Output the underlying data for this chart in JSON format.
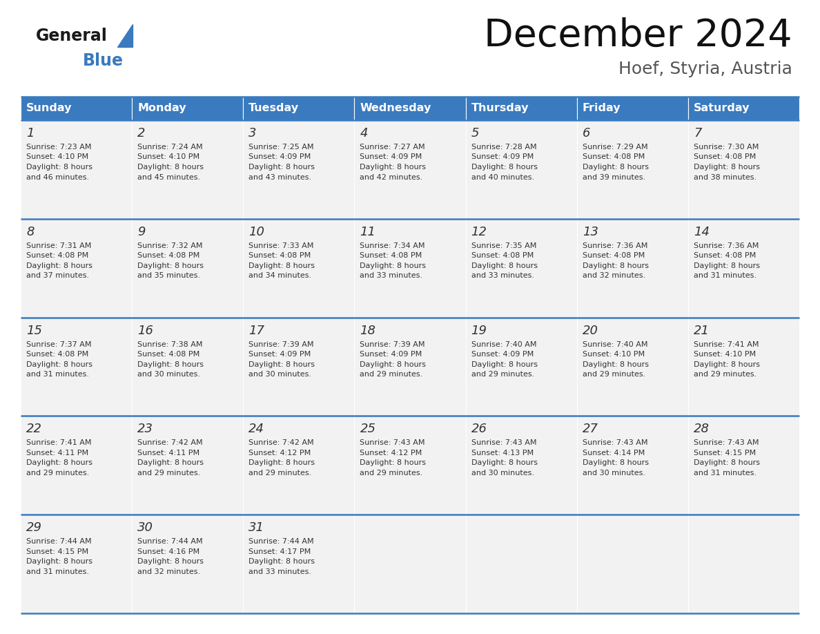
{
  "title": "December 2024",
  "subtitle": "Hoef, Styria, Austria",
  "header_color": "#3a7abf",
  "header_text_color": "#ffffff",
  "day_names": [
    "Sunday",
    "Monday",
    "Tuesday",
    "Wednesday",
    "Thursday",
    "Friday",
    "Saturday"
  ],
  "weeks": [
    [
      {
        "day": "1",
        "sunrise": "7:23 AM",
        "sunset": "4:10 PM",
        "daylight_line1": "Daylight: 8 hours",
        "daylight_line2": "and 46 minutes."
      },
      {
        "day": "2",
        "sunrise": "7:24 AM",
        "sunset": "4:10 PM",
        "daylight_line1": "Daylight: 8 hours",
        "daylight_line2": "and 45 minutes."
      },
      {
        "day": "3",
        "sunrise": "7:25 AM",
        "sunset": "4:09 PM",
        "daylight_line1": "Daylight: 8 hours",
        "daylight_line2": "and 43 minutes."
      },
      {
        "day": "4",
        "sunrise": "7:27 AM",
        "sunset": "4:09 PM",
        "daylight_line1": "Daylight: 8 hours",
        "daylight_line2": "and 42 minutes."
      },
      {
        "day": "5",
        "sunrise": "7:28 AM",
        "sunset": "4:09 PM",
        "daylight_line1": "Daylight: 8 hours",
        "daylight_line2": "and 40 minutes."
      },
      {
        "day": "6",
        "sunrise": "7:29 AM",
        "sunset": "4:08 PM",
        "daylight_line1": "Daylight: 8 hours",
        "daylight_line2": "and 39 minutes."
      },
      {
        "day": "7",
        "sunrise": "7:30 AM",
        "sunset": "4:08 PM",
        "daylight_line1": "Daylight: 8 hours",
        "daylight_line2": "and 38 minutes."
      }
    ],
    [
      {
        "day": "8",
        "sunrise": "7:31 AM",
        "sunset": "4:08 PM",
        "daylight_line1": "Daylight: 8 hours",
        "daylight_line2": "and 37 minutes."
      },
      {
        "day": "9",
        "sunrise": "7:32 AM",
        "sunset": "4:08 PM",
        "daylight_line1": "Daylight: 8 hours",
        "daylight_line2": "and 35 minutes."
      },
      {
        "day": "10",
        "sunrise": "7:33 AM",
        "sunset": "4:08 PM",
        "daylight_line1": "Daylight: 8 hours",
        "daylight_line2": "and 34 minutes."
      },
      {
        "day": "11",
        "sunrise": "7:34 AM",
        "sunset": "4:08 PM",
        "daylight_line1": "Daylight: 8 hours",
        "daylight_line2": "and 33 minutes."
      },
      {
        "day": "12",
        "sunrise": "7:35 AM",
        "sunset": "4:08 PM",
        "daylight_line1": "Daylight: 8 hours",
        "daylight_line2": "and 33 minutes."
      },
      {
        "day": "13",
        "sunrise": "7:36 AM",
        "sunset": "4:08 PM",
        "daylight_line1": "Daylight: 8 hours",
        "daylight_line2": "and 32 minutes."
      },
      {
        "day": "14",
        "sunrise": "7:36 AM",
        "sunset": "4:08 PM",
        "daylight_line1": "Daylight: 8 hours",
        "daylight_line2": "and 31 minutes."
      }
    ],
    [
      {
        "day": "15",
        "sunrise": "7:37 AM",
        "sunset": "4:08 PM",
        "daylight_line1": "Daylight: 8 hours",
        "daylight_line2": "and 31 minutes."
      },
      {
        "day": "16",
        "sunrise": "7:38 AM",
        "sunset": "4:08 PM",
        "daylight_line1": "Daylight: 8 hours",
        "daylight_line2": "and 30 minutes."
      },
      {
        "day": "17",
        "sunrise": "7:39 AM",
        "sunset": "4:09 PM",
        "daylight_line1": "Daylight: 8 hours",
        "daylight_line2": "and 30 minutes."
      },
      {
        "day": "18",
        "sunrise": "7:39 AM",
        "sunset": "4:09 PM",
        "daylight_line1": "Daylight: 8 hours",
        "daylight_line2": "and 29 minutes."
      },
      {
        "day": "19",
        "sunrise": "7:40 AM",
        "sunset": "4:09 PM",
        "daylight_line1": "Daylight: 8 hours",
        "daylight_line2": "and 29 minutes."
      },
      {
        "day": "20",
        "sunrise": "7:40 AM",
        "sunset": "4:10 PM",
        "daylight_line1": "Daylight: 8 hours",
        "daylight_line2": "and 29 minutes."
      },
      {
        "day": "21",
        "sunrise": "7:41 AM",
        "sunset": "4:10 PM",
        "daylight_line1": "Daylight: 8 hours",
        "daylight_line2": "and 29 minutes."
      }
    ],
    [
      {
        "day": "22",
        "sunrise": "7:41 AM",
        "sunset": "4:11 PM",
        "daylight_line1": "Daylight: 8 hours",
        "daylight_line2": "and 29 minutes."
      },
      {
        "day": "23",
        "sunrise": "7:42 AM",
        "sunset": "4:11 PM",
        "daylight_line1": "Daylight: 8 hours",
        "daylight_line2": "and 29 minutes."
      },
      {
        "day": "24",
        "sunrise": "7:42 AM",
        "sunset": "4:12 PM",
        "daylight_line1": "Daylight: 8 hours",
        "daylight_line2": "and 29 minutes."
      },
      {
        "day": "25",
        "sunrise": "7:43 AM",
        "sunset": "4:12 PM",
        "daylight_line1": "Daylight: 8 hours",
        "daylight_line2": "and 29 minutes."
      },
      {
        "day": "26",
        "sunrise": "7:43 AM",
        "sunset": "4:13 PM",
        "daylight_line1": "Daylight: 8 hours",
        "daylight_line2": "and 30 minutes."
      },
      {
        "day": "27",
        "sunrise": "7:43 AM",
        "sunset": "4:14 PM",
        "daylight_line1": "Daylight: 8 hours",
        "daylight_line2": "and 30 minutes."
      },
      {
        "day": "28",
        "sunrise": "7:43 AM",
        "sunset": "4:15 PM",
        "daylight_line1": "Daylight: 8 hours",
        "daylight_line2": "and 31 minutes."
      }
    ],
    [
      {
        "day": "29",
        "sunrise": "7:44 AM",
        "sunset": "4:15 PM",
        "daylight_line1": "Daylight: 8 hours",
        "daylight_line2": "and 31 minutes."
      },
      {
        "day": "30",
        "sunrise": "7:44 AM",
        "sunset": "4:16 PM",
        "daylight_line1": "Daylight: 8 hours",
        "daylight_line2": "and 32 minutes."
      },
      {
        "day": "31",
        "sunrise": "7:44 AM",
        "sunset": "4:17 PM",
        "daylight_line1": "Daylight: 8 hours",
        "daylight_line2": "and 33 minutes."
      },
      null,
      null,
      null,
      null
    ]
  ],
  "cell_bg_color": "#f2f2f2",
  "separator_color": "#3a7abf",
  "text_color": "#333333",
  "logo_general_color": "#1a1a1a",
  "logo_blue_color": "#3a7abf",
  "fig_width": 11.88,
  "fig_height": 9.18,
  "dpi": 100
}
